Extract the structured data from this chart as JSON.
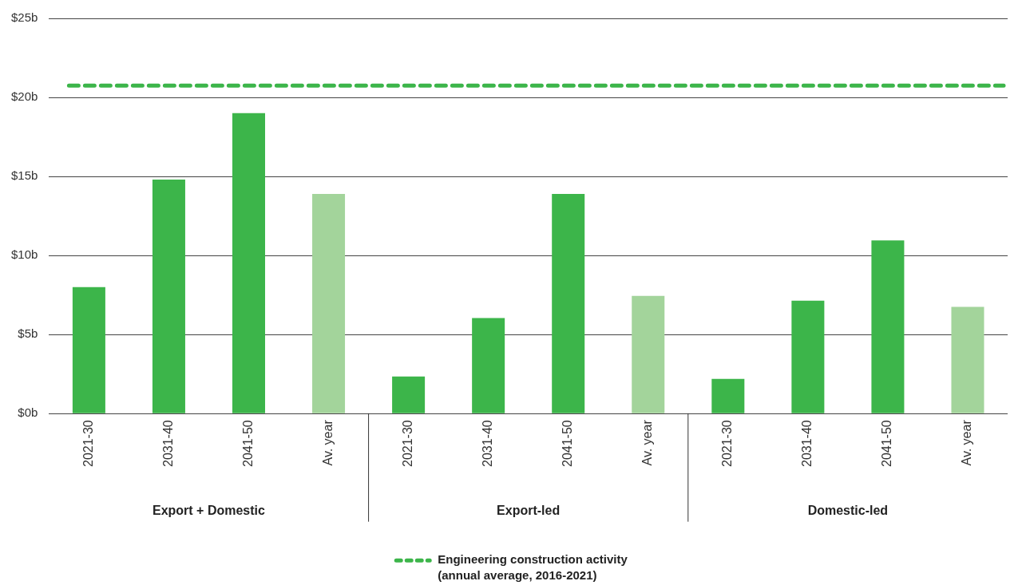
{
  "chart_data": {
    "type": "bar",
    "categories": [
      "2021-30",
      "2031-40",
      "2041-50",
      "Av. year",
      "2021-30",
      "2031-40",
      "2041-50",
      "Av. year",
      "2021-30",
      "2031-40",
      "2041-50",
      "Av. year"
    ],
    "values": [
      8.0,
      14.8,
      19.0,
      13.9,
      2.35,
      6.05,
      13.9,
      7.45,
      2.2,
      7.15,
      10.95,
      6.75
    ],
    "colors": [
      "#3cb54a",
      "#3cb54a",
      "#3cb54a",
      "#a3d49b",
      "#3cb54a",
      "#3cb54a",
      "#3cb54a",
      "#a3d49b",
      "#3cb54a",
      "#3cb54a",
      "#3cb54a",
      "#a3d49b"
    ],
    "ylim": [
      0,
      25
    ],
    "yticks": [
      {
        "value": 0,
        "label": "$0b"
      },
      {
        "value": 5,
        "label": "$5b"
      },
      {
        "value": 10,
        "label": "$10b"
      },
      {
        "value": 15,
        "label": "$15b"
      },
      {
        "value": 20,
        "label": "$20b"
      },
      {
        "value": 25,
        "label": "$25b"
      }
    ],
    "grid": "y",
    "legend": "bottom",
    "annotations": [
      "Export + Domestic",
      "Export-led",
      "Domestic-led"
    ],
    "ref_lines": [
      {
        "axis": "y",
        "value": 20.75,
        "label": "Engineering construction activity\n(annual average, 2016-2021)",
        "color": "#3cb54a",
        "line_style": "dashed"
      }
    ]
  }
}
